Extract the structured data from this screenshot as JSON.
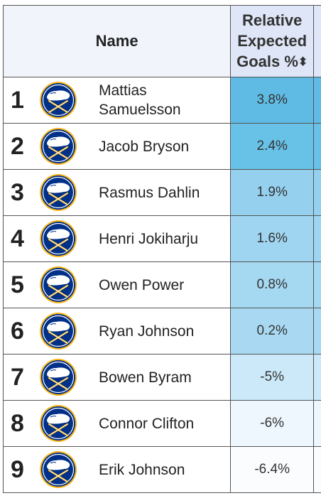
{
  "header": {
    "name_label": "Name",
    "metric_line1": "Relative",
    "metric_line2": "Expected",
    "metric_line3": "Goals %",
    "sort_glyph": "⬍"
  },
  "colors": {
    "rank1_cell": "#5fbbe4",
    "rank2_cell": "#68c1e6",
    "mid_cell": "#9fd5f0",
    "light_cell": "#c6e7f7",
    "lightest_cell": "#f0f8fd",
    "logo_navy": "#003087",
    "logo_gold": "#fcb514"
  },
  "players": [
    {
      "rank": "1",
      "name_line1": "Mattias",
      "name_line2": "Samuelsson",
      "value": "3.8%",
      "color": "#5fbbe4",
      "logo": "buffalo-sabres-logo"
    },
    {
      "rank": "2",
      "name_line1": "Jacob Bryson",
      "name_line2": "",
      "value": "2.4%",
      "color": "#68c1e6",
      "logo": "buffalo-sabres-logo"
    },
    {
      "rank": "3",
      "name_line1": "Rasmus Dahlin",
      "name_line2": "",
      "value": "1.9%",
      "color": "#95d1ef",
      "logo": "buffalo-sabres-logo"
    },
    {
      "rank": "4",
      "name_line1": "Henri Jokiharju",
      "name_line2": "",
      "value": "1.6%",
      "color": "#9fd5f0",
      "logo": "buffalo-sabres-logo"
    },
    {
      "rank": "5",
      "name_line1": "Owen Power",
      "name_line2": "",
      "value": "0.8%",
      "color": "#a5d8f1",
      "logo": "buffalo-sabres-logo"
    },
    {
      "rank": "6",
      "name_line1": "Ryan Johnson",
      "name_line2": "",
      "value": "0.2%",
      "color": "#a9d9f2",
      "logo": "buffalo-sabres-logo"
    },
    {
      "rank": "7",
      "name_line1": "Bowen Byram",
      "name_line2": "",
      "value": "-5%",
      "color": "#cbe9f8",
      "logo": "buffalo-sabres-logo"
    },
    {
      "rank": "8",
      "name_line1": "Connor Clifton",
      "name_line2": "",
      "value": "-6%",
      "color": "#eef7fd",
      "logo": "buffalo-sabres-logo"
    },
    {
      "rank": "9",
      "name_line1": "Erik Johnson",
      "name_line2": "",
      "value": "-6.4%",
      "color": "#fafcfe",
      "logo": "buffalo-sabres-logo"
    }
  ]
}
